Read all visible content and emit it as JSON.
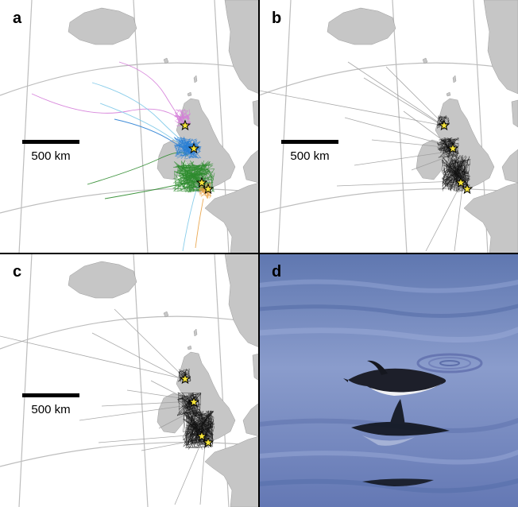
{
  "panels": [
    {
      "label": "a",
      "scale_label": "500 km"
    },
    {
      "label": "b",
      "scale_label": "500 km"
    },
    {
      "label": "c",
      "scale_label": "500 km"
    },
    {
      "label": "d"
    }
  ],
  "colors": {
    "land": "#c6c6c6",
    "graticule": "#bdbdbd",
    "colony_star": "#f5e33a",
    "track_black": "#111111",
    "track_grey": "#9a9a9a",
    "track_green": "#2e8b2e",
    "track_blue": "#2a7fd4",
    "track_cyan": "#7cc8e8",
    "track_magenta": "#d47ad8",
    "track_orange": "#e8a040",
    "sea": "#7d8fc2"
  }
}
